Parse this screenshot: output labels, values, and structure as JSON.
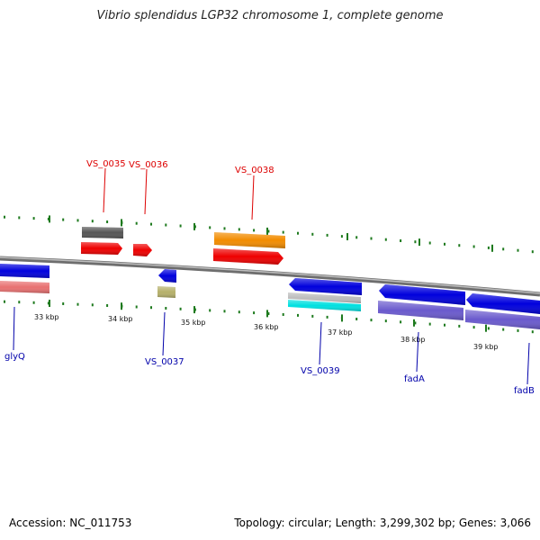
{
  "title": "Vibrio splendidus LGP32 chromosome 1, complete genome",
  "accession_text": "Accession: NC_011753",
  "summary_text": "Topology: circular; Length: 3,299,302 bp; Genes: 3,066",
  "tick_labels": [
    "33 kbp",
    "34 kbp",
    "35 kbp",
    "36 kbp",
    "37 kbp",
    "38 kbp",
    "39 kbp"
  ],
  "gene_labels": {
    "vs0035": "VS_0035",
    "vs0036": "VS_0036",
    "vs0038": "VS_0038",
    "glyq": "glyQ",
    "vs0037": "VS_0037",
    "vs0039": "VS_0039",
    "fada": "fadA",
    "fadb": "fadB"
  },
  "colors": {
    "tick": "#1e7a1e",
    "backbone": "#8c8c8c",
    "forward_label": "#dd0000",
    "reverse_label": "#0000aa",
    "gene_red": "#ee0000",
    "gene_gray": "#555555",
    "gene_orange": "#f28c00",
    "gene_blue": "#0000dd",
    "gene_salmon": "#e87070",
    "gene_khaki": "#b5b06a",
    "gene_silver": "#bdbdbd",
    "gene_cyan": "#00e0e0",
    "gene_purple": "#6a5acd"
  }
}
